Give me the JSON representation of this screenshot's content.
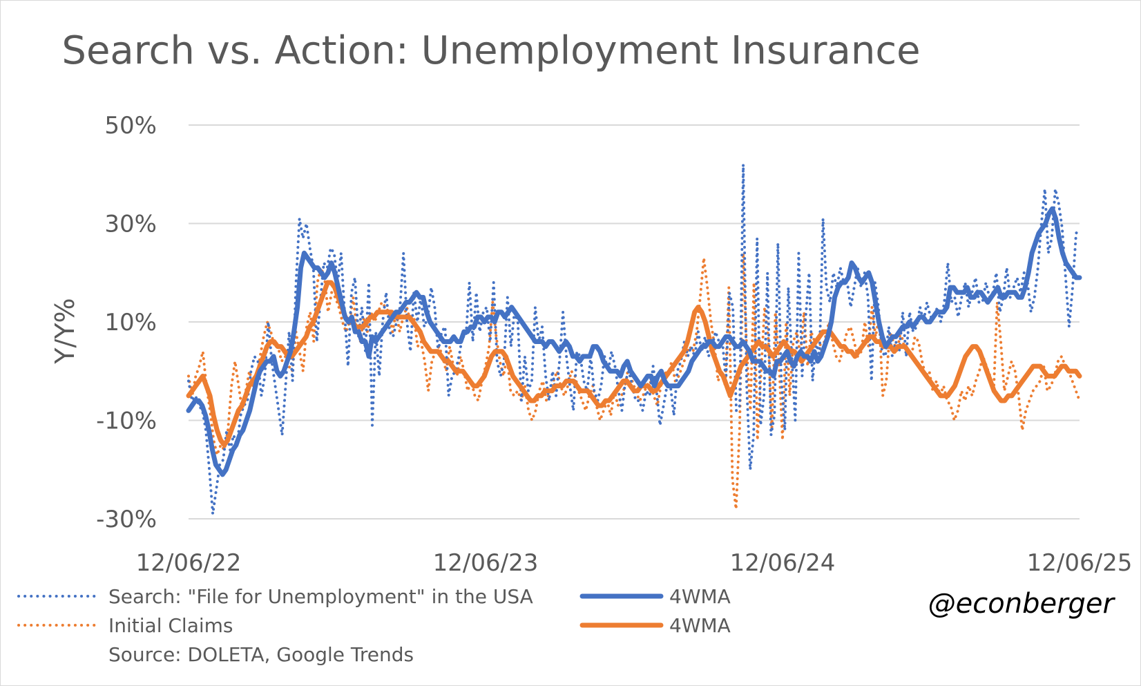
{
  "chart_data": {
    "type": "line",
    "title": "Search vs. Action: Unemployment Insurance",
    "xlabel": "",
    "ylabel": "Y/Y%",
    "x_tick_labels": [
      "12/06/22",
      "12/06/23",
      "12/06/24",
      "12/06/25"
    ],
    "x_range": [
      "12/06/22",
      "12/06/25"
    ],
    "y_ticks": [
      50,
      30,
      10,
      -10,
      -30
    ],
    "y_tick_labels": [
      "50%",
      "30%",
      "10%",
      "-10%",
      "-30%"
    ],
    "ylim": [
      -30,
      50
    ],
    "grid": true,
    "legend_position": "bottom",
    "source": "Source: DOLETA, Google Trends",
    "credit": "@econberger",
    "colors": {
      "blue": "#4472c4",
      "orange": "#ed7d31",
      "grid": "#d9d9d9",
      "text": "#595959"
    },
    "series": [
      {
        "name": "Search: \"File for Unemployment\" in the USA",
        "color": "#4472c4",
        "style": "dotted",
        "values": [
          -2,
          -6,
          -5,
          -7,
          -8,
          -12,
          -20,
          -29,
          -24,
          -19,
          -18,
          -12,
          -16,
          -13,
          -15,
          -9,
          -7,
          -6,
          0,
          3,
          2,
          -5,
          -1,
          10,
          2,
          -3,
          -8,
          -13,
          -3,
          8,
          -2,
          18,
          31,
          27,
          30,
          25,
          21,
          6,
          14,
          22,
          21,
          25,
          24,
          18,
          24,
          12,
          1,
          16,
          19,
          7,
          13,
          4,
          18,
          -11,
          8,
          -1,
          10,
          16,
          8,
          7,
          10,
          13,
          24,
          10,
          4,
          16,
          10,
          15,
          9,
          11,
          17,
          13,
          4,
          8,
          9,
          -5,
          -1,
          0,
          3,
          7,
          7,
          18,
          6,
          16,
          8,
          12,
          13,
          6,
          18,
          2,
          -1,
          2,
          15,
          5,
          12,
          10,
          -6,
          3,
          -4,
          -2,
          13,
          6,
          9,
          -1,
          -6,
          0,
          -5,
          2,
          12,
          3,
          -3,
          -8,
          4,
          3,
          -2,
          -4,
          3,
          -4,
          -6,
          -3,
          3,
          0,
          4,
          1,
          -4,
          -8,
          -2,
          0,
          -3,
          -6,
          -6,
          -8,
          -4,
          -5,
          1,
          -4,
          -11,
          -7,
          -3,
          -3,
          -9,
          0,
          2,
          6,
          3,
          5,
          3,
          8,
          4,
          7,
          3,
          5,
          8,
          6,
          6,
          -2,
          16,
          13,
          -8,
          -7,
          42,
          -3,
          -20,
          -13,
          27,
          -11,
          -5,
          20,
          -13,
          -9,
          26,
          -2,
          -12,
          17,
          3,
          -10,
          24,
          -1,
          11,
          20,
          -2,
          6,
          3,
          31,
          17,
          14,
          20,
          17,
          21,
          18,
          18,
          13,
          17,
          21,
          17,
          20,
          15,
          -2,
          18,
          13,
          4,
          3,
          9,
          3,
          6,
          4,
          12,
          3,
          12,
          8,
          9,
          13,
          10,
          14,
          11,
          11,
          13,
          10,
          14,
          22,
          14,
          15,
          11,
          15,
          18,
          13,
          16,
          19,
          14,
          14,
          18,
          15,
          16,
          20,
          12,
          15,
          21,
          15,
          17,
          19,
          16,
          20,
          18,
          12,
          15,
          21,
          30,
          37,
          24,
          27,
          37,
          34,
          29,
          19,
          9,
          17,
          28,
          29
        ]
      },
      {
        "name": "4WMA",
        "color": "#4472c4",
        "style": "solid",
        "values": [
          -8,
          -7,
          -6,
          -6,
          -7,
          -9,
          -12,
          -16,
          -19,
          -20,
          -21,
          -20,
          -18,
          -16,
          -15,
          -13,
          -12,
          -10,
          -8,
          -5,
          -2,
          0,
          1,
          2,
          2,
          3,
          0,
          -1,
          0,
          2,
          4,
          8,
          13,
          21,
          24,
          23,
          22,
          21,
          21,
          20,
          19,
          20,
          22,
          20,
          17,
          14,
          11,
          10,
          11,
          8,
          8,
          6,
          6,
          3,
          7,
          6,
          7,
          8,
          9,
          10,
          11,
          12,
          12,
          13,
          14,
          14,
          15,
          16,
          15,
          15,
          12,
          10,
          9,
          8,
          7,
          6,
          6,
          6,
          7,
          6,
          6,
          8,
          8,
          9,
          9,
          11,
          11,
          10,
          11,
          11,
          10,
          12,
          12,
          11,
          12,
          13,
          12,
          11,
          10,
          9,
          8,
          7,
          6,
          6,
          6,
          5,
          6,
          6,
          5,
          4,
          5,
          6,
          5,
          3,
          3,
          2,
          3,
          3,
          3,
          5,
          5,
          4,
          2,
          1,
          0,
          0,
          0,
          -1,
          1,
          2,
          0,
          -1,
          -2,
          -3,
          -2,
          -1,
          -1,
          -3,
          -1,
          0,
          -2,
          -3,
          -3,
          -3,
          -3,
          -2,
          -1,
          0,
          2,
          3,
          4,
          5,
          5,
          6,
          6,
          5,
          5,
          6,
          7,
          7,
          6,
          5,
          5,
          6,
          5,
          4,
          2,
          2,
          2,
          1,
          0,
          0,
          -1,
          2,
          2,
          3,
          4,
          2,
          1,
          3,
          4,
          3,
          3,
          2,
          4,
          2,
          3,
          5,
          7,
          10,
          15,
          17,
          18,
          18,
          19,
          22,
          21,
          19,
          18,
          19,
          20,
          18,
          14,
          10,
          7,
          5,
          6,
          7,
          7,
          8,
          9,
          9,
          10,
          9,
          10,
          11,
          11,
          10,
          10,
          11,
          12,
          12,
          12,
          13,
          17,
          17,
          16,
          16,
          16,
          17,
          15,
          15,
          16,
          16,
          15,
          14,
          15,
          16,
          17,
          15,
          15,
          16,
          16,
          16,
          15,
          15,
          17,
          20,
          24,
          26,
          28,
          29,
          30,
          32,
          33,
          31,
          27,
          24,
          22,
          21,
          20,
          19,
          19
        ]
      },
      {
        "name": "Initial Claims",
        "color": "#ed7d31",
        "style": "dotted",
        "values": [
          -1,
          -5,
          -1,
          1,
          4,
          -3,
          -8,
          -14,
          -17,
          -15,
          -16,
          -12,
          -3,
          2,
          -3,
          -8,
          -4,
          0,
          -3,
          -2,
          3,
          7,
          10,
          8,
          5,
          5,
          2,
          3,
          1,
          0,
          8,
          4,
          0,
          9,
          12,
          6,
          18,
          21,
          19,
          12,
          16,
          15,
          13,
          10,
          8,
          10,
          15,
          9,
          6,
          11,
          8,
          12,
          10,
          12,
          14,
          13,
          12,
          8,
          12,
          8,
          11,
          13,
          10,
          11,
          5,
          6,
          2,
          -4,
          2,
          4,
          5,
          3,
          0,
          5,
          1,
          -1,
          3,
          0,
          -4,
          -2,
          -5,
          -6,
          -2,
          1,
          5,
          14,
          7,
          2,
          -1,
          3,
          -4,
          -5,
          -4,
          -6,
          -3,
          -8,
          -10,
          -8,
          -4,
          -2,
          -6,
          -4,
          -2,
          0,
          -3,
          -5,
          -3,
          0,
          -1,
          -4,
          -6,
          -8,
          -5,
          -3,
          -7,
          -10,
          -8,
          -6,
          -9,
          -4,
          -7,
          -5,
          -3,
          1,
          -2,
          -4,
          -6,
          -5,
          -3,
          -2,
          -5,
          -7,
          -3,
          0,
          -1,
          2,
          -2,
          -1,
          1,
          3,
          5,
          4,
          8,
          15,
          23,
          17,
          10,
          5,
          -2,
          0,
          -3,
          17,
          -22,
          -28,
          -12,
          24,
          4,
          -8,
          18,
          -14,
          0,
          13,
          7,
          -12,
          12,
          2,
          -14,
          10,
          -5,
          6,
          8,
          3,
          12,
          1,
          8,
          6,
          7,
          4,
          7,
          10,
          6,
          3,
          2,
          5,
          8,
          9,
          6,
          3,
          4,
          10,
          5,
          13,
          7,
          11,
          -5,
          -2,
          8,
          6,
          4,
          8,
          5,
          4,
          3,
          7,
          6,
          2,
          -1,
          0,
          -4,
          -2,
          -5,
          -3,
          -6,
          -7,
          -10,
          -8,
          -4,
          -6,
          -3,
          -5,
          -2,
          0,
          3,
          1,
          -1,
          -4,
          14,
          6,
          -4,
          -1,
          2,
          0,
          -5,
          -12,
          -8,
          -6,
          -4,
          -3,
          -2,
          1,
          -4,
          -3,
          -1,
          2,
          3,
          1,
          0,
          -2,
          -4,
          -6
        ]
      },
      {
        "name": "4WMA",
        "color": "#ed7d31",
        "style": "solid",
        "values": [
          -5,
          -4,
          -3,
          -2,
          -1,
          -3,
          -5,
          -9,
          -12,
          -14,
          -15,
          -14,
          -12,
          -10,
          -8,
          -7,
          -5,
          -3,
          -2,
          -1,
          1,
          3,
          5,
          6,
          6,
          5,
          5,
          4,
          3,
          3,
          4,
          5,
          6,
          7,
          9,
          10,
          12,
          14,
          16,
          18,
          18,
          17,
          15,
          13,
          11,
          10,
          10,
          9,
          9,
          9,
          10,
          11,
          11,
          12,
          12,
          12,
          12,
          12,
          11,
          11,
          11,
          11,
          11,
          10,
          9,
          8,
          6,
          5,
          4,
          4,
          4,
          3,
          2,
          2,
          1,
          0,
          0,
          0,
          -1,
          -2,
          -3,
          -3,
          -2,
          -1,
          1,
          3,
          4,
          4,
          4,
          3,
          1,
          -1,
          -2,
          -3,
          -4,
          -5,
          -6,
          -6,
          -5,
          -5,
          -4,
          -4,
          -4,
          -3,
          -3,
          -3,
          -2,
          -2,
          -2,
          -3,
          -4,
          -4,
          -4,
          -5,
          -6,
          -7,
          -7,
          -6,
          -6,
          -5,
          -4,
          -3,
          -2,
          -2,
          -3,
          -4,
          -4,
          -3,
          -3,
          -3,
          -4,
          -4,
          -3,
          -2,
          -1,
          0,
          1,
          2,
          3,
          4,
          6,
          9,
          12,
          13,
          12,
          10,
          7,
          4,
          2,
          0,
          -1,
          -3,
          -5,
          -3,
          -1,
          1,
          2,
          3,
          4,
          5,
          6,
          5,
          5,
          4,
          3,
          4,
          5,
          6,
          5,
          4,
          4,
          3,
          2,
          3,
          4,
          5,
          6,
          7,
          8,
          8,
          8,
          7,
          6,
          5,
          5,
          4,
          4,
          3,
          4,
          5,
          6,
          7,
          7,
          6,
          6,
          5,
          5,
          5,
          4,
          5,
          5,
          5,
          4,
          3,
          2,
          1,
          0,
          -1,
          -2,
          -3,
          -4,
          -5,
          -5,
          -5,
          -4,
          -3,
          -1,
          1,
          3,
          4,
          5,
          5,
          4,
          2,
          0,
          -2,
          -4,
          -5,
          -6,
          -6,
          -5,
          -5,
          -4,
          -3,
          -2,
          -1,
          0,
          1,
          1,
          1,
          0,
          -1,
          -1,
          -1,
          0,
          1,
          1,
          0,
          0,
          0,
          -1
        ]
      }
    ]
  }
}
